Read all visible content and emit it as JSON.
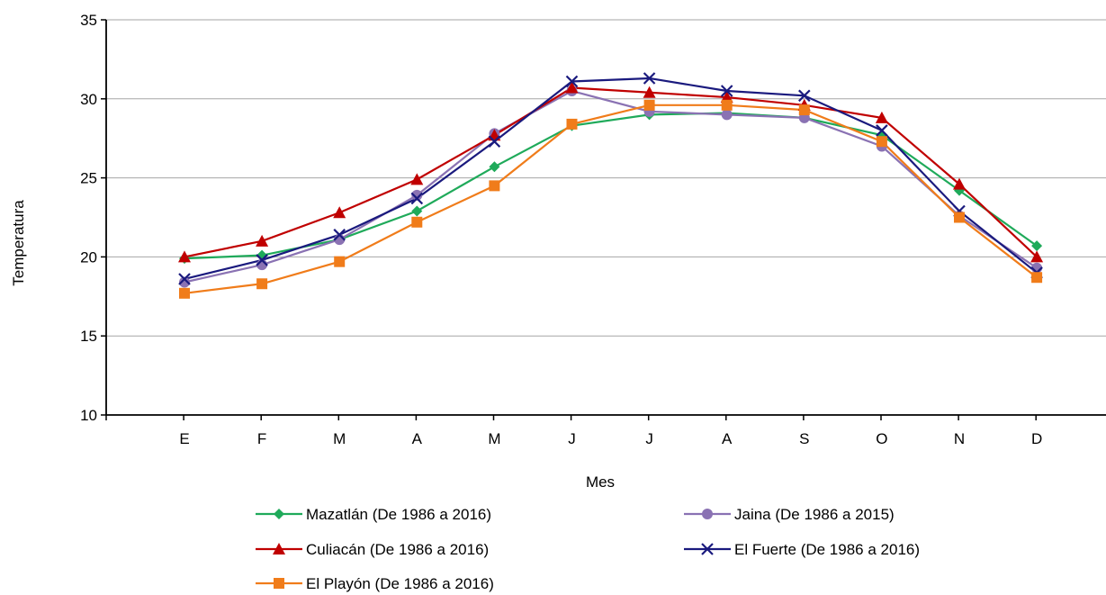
{
  "chart_data": {
    "type": "line",
    "title": "",
    "xlabel": "Mes",
    "ylabel": "Temperatura",
    "categories": [
      "E",
      "F",
      "M",
      "A",
      "M",
      "J",
      "J",
      "A",
      "S",
      "O",
      "N",
      "D"
    ],
    "ylim": [
      10,
      35
    ],
    "yticks": [
      10,
      15,
      20,
      25,
      30,
      35
    ],
    "grid": true,
    "legend_position": "bottom",
    "series": [
      {
        "name": "Mazatlán (De 1986 a 2016)",
        "color": "#1faa5a",
        "marker": "diamond",
        "values": [
          19.9,
          20.1,
          21.1,
          22.9,
          25.7,
          28.3,
          29.0,
          29.1,
          28.8,
          27.7,
          24.2,
          20.7
        ]
      },
      {
        "name": "Jaina (De 1986 a 2015)",
        "color": "#8a72b3",
        "marker": "circle",
        "values": [
          18.4,
          19.5,
          21.1,
          23.9,
          27.8,
          30.5,
          29.2,
          29.0,
          28.8,
          27.0,
          22.6,
          19.3
        ]
      },
      {
        "name": "Culiacán  (De 1986 a 2016)",
        "color": "#c00000",
        "marker": "triangle",
        "values": [
          20.0,
          21.0,
          22.8,
          24.9,
          27.7,
          30.7,
          30.4,
          30.1,
          29.6,
          28.8,
          24.6,
          20.0
        ]
      },
      {
        "name": "El Fuerte (De 1986 a 2016)",
        "color": "#1a1a7e",
        "marker": "x",
        "values": [
          18.6,
          19.8,
          21.4,
          23.7,
          27.3,
          31.1,
          31.3,
          30.5,
          30.2,
          28.0,
          22.9,
          19.0
        ]
      },
      {
        "name": "El Playón (De 1986 a 2016)",
        "color": "#f07c1a",
        "marker": "square",
        "values": [
          17.7,
          18.3,
          19.7,
          22.2,
          24.5,
          28.4,
          29.6,
          29.6,
          29.3,
          27.3,
          22.5,
          18.7
        ]
      }
    ]
  }
}
